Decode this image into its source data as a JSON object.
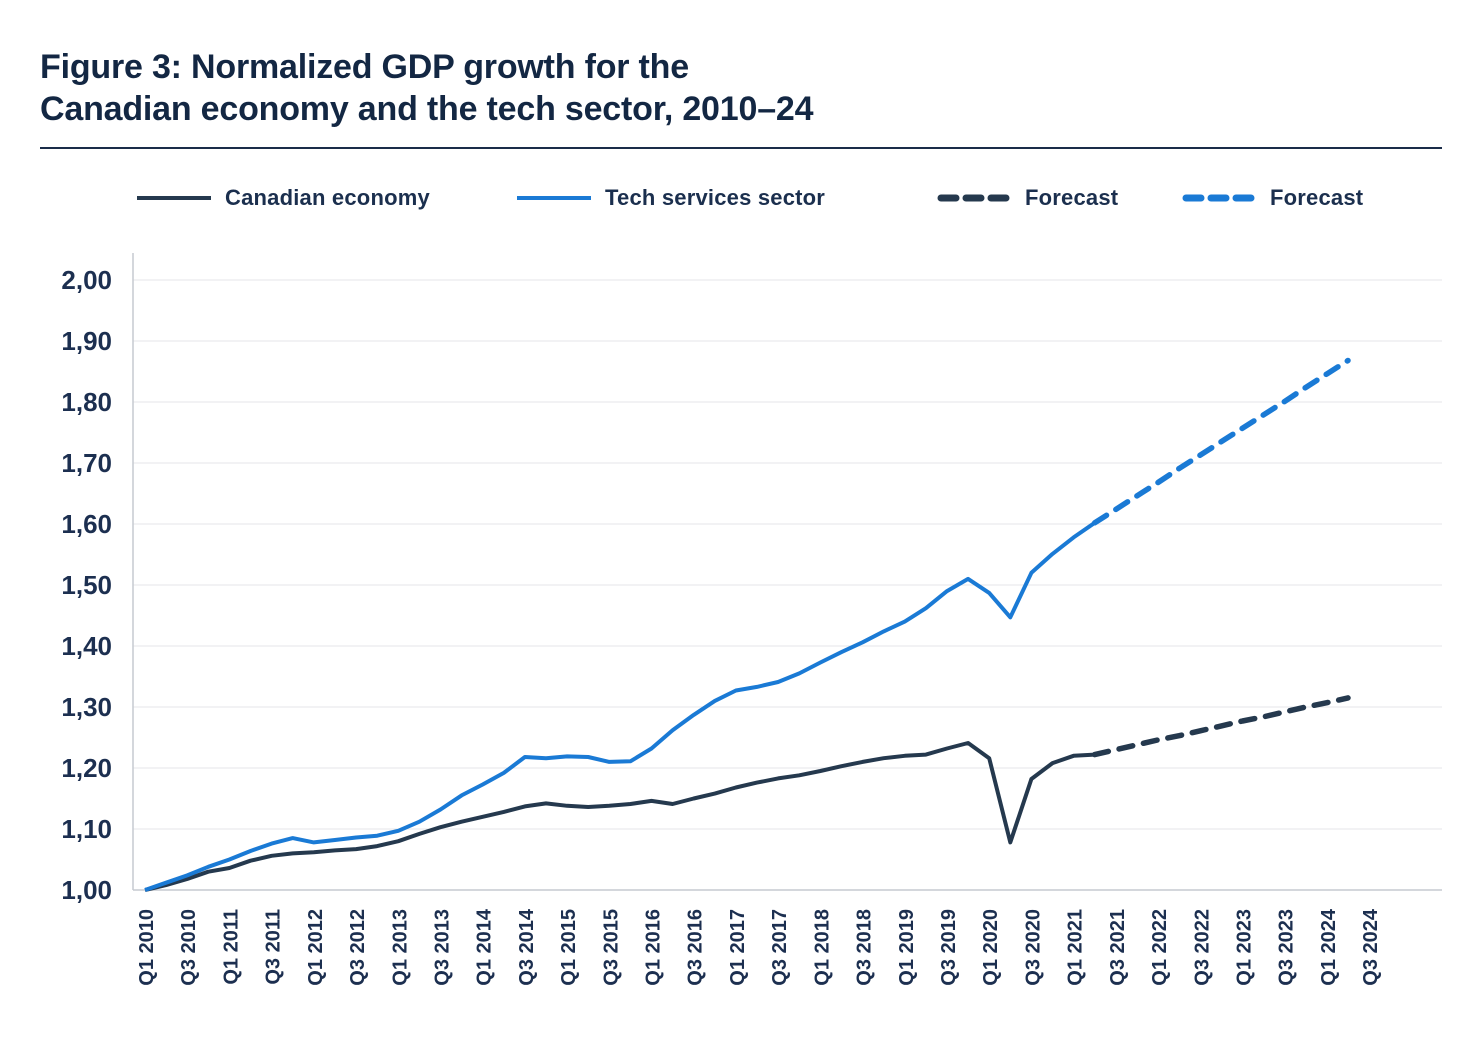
{
  "figure": {
    "title_line1": "Figure 3: Normalized GDP growth for the",
    "title_line2": "Canadian economy and the tech sector, 2010–24"
  },
  "legend": [
    {
      "label": "Canadian economy",
      "color": "#25394E",
      "dash": false
    },
    {
      "label": "Tech services sector",
      "color": "#1A7AD5",
      "dash": false
    },
    {
      "label": "Forecast",
      "color": "#25394E",
      "dash": true
    },
    {
      "label": "Forecast",
      "color": "#1A7AD5",
      "dash": true
    }
  ],
  "chart_data": {
    "type": "line",
    "title": "Figure 3: Normalized GDP growth for the Canadian economy and the tech sector, 2010–24",
    "grid": true,
    "legend_position": "top",
    "x_axis": {
      "unit": "quarter",
      "range": [
        "Q1 2010",
        "Q3 2024"
      ],
      "tick_labels": [
        "Q1 2010",
        "Q3 2010",
        "Q1 2011",
        "Q3 2011",
        "Q1 2012",
        "Q3 2012",
        "Q1 2013",
        "Q3 2013",
        "Q1 2014",
        "Q3 2014",
        "Q1 2015",
        "Q3 2015",
        "Q1 2016",
        "Q3 2016",
        "Q1 2017",
        "Q3 2017",
        "Q1 2018",
        "Q3 2018",
        "Q1 2019",
        "Q3 2019",
        "Q1 2020",
        "Q3 2020",
        "Q1 2021",
        "Q3 2021",
        "Q1 2022",
        "Q3 2022",
        "Q1 2023",
        "Q3 2023",
        "Q1 2024",
        "Q3 2024"
      ]
    },
    "y_axis": {
      "ylim": [
        1.0,
        2.0
      ],
      "tick_values": [
        2.0,
        1.9,
        1.8,
        1.7,
        1.6,
        1.5,
        1.4,
        1.3,
        1.2,
        1.1,
        1.0
      ],
      "tick_labels": [
        "2,00",
        "1,90",
        "1,80",
        "1,70",
        "1,60",
        "1,50",
        "1,40",
        "1,30",
        "1,20",
        "1,10",
        "1,00"
      ]
    },
    "series": [
      {
        "name": "Canadian economy",
        "color": "#25394E",
        "style": "solid",
        "start_quarter_index": 0,
        "values": [
          1.0,
          1.008,
          1.018,
          1.03,
          1.036,
          1.048,
          1.056,
          1.06,
          1.062,
          1.065,
          1.067,
          1.072,
          1.08,
          1.092,
          1.103,
          1.112,
          1.12,
          1.128,
          1.137,
          1.142,
          1.138,
          1.136,
          1.138,
          1.141,
          1.146,
          1.141,
          1.15,
          1.158,
          1.168,
          1.176,
          1.183,
          1.188,
          1.195,
          1.203,
          1.21,
          1.216,
          1.22,
          1.222,
          1.232,
          1.241,
          1.216,
          1.078,
          1.182,
          1.208,
          1.22,
          1.222
        ]
      },
      {
        "name": "Tech services sector",
        "color": "#1A7AD5",
        "style": "solid",
        "start_quarter_index": 0,
        "values": [
          1.0,
          1.012,
          1.024,
          1.038,
          1.05,
          1.064,
          1.076,
          1.085,
          1.078,
          1.082,
          1.086,
          1.089,
          1.097,
          1.112,
          1.132,
          1.155,
          1.173,
          1.192,
          1.218,
          1.216,
          1.219,
          1.218,
          1.21,
          1.211,
          1.232,
          1.262,
          1.287,
          1.31,
          1.327,
          1.333,
          1.341,
          1.355,
          1.373,
          1.39,
          1.406,
          1.424,
          1.44,
          1.462,
          1.49,
          1.51,
          1.487,
          1.447,
          1.52,
          1.551,
          1.578,
          1.602
        ]
      },
      {
        "name": "Forecast",
        "color": "#25394E",
        "style": "dashed",
        "start_quarter_index": 45,
        "values": [
          1.222,
          1.23,
          1.238,
          1.246,
          1.253,
          1.261,
          1.269,
          1.277,
          1.284,
          1.292,
          1.3,
          1.307,
          1.315
        ]
      },
      {
        "name": "Forecast",
        "color": "#1A7AD5",
        "style": "dashed",
        "start_quarter_index": 45,
        "values": [
          1.602,
          1.624,
          1.646,
          1.668,
          1.691,
          1.713,
          1.735,
          1.757,
          1.779,
          1.801,
          1.824,
          1.846,
          1.868
        ]
      }
    ]
  }
}
